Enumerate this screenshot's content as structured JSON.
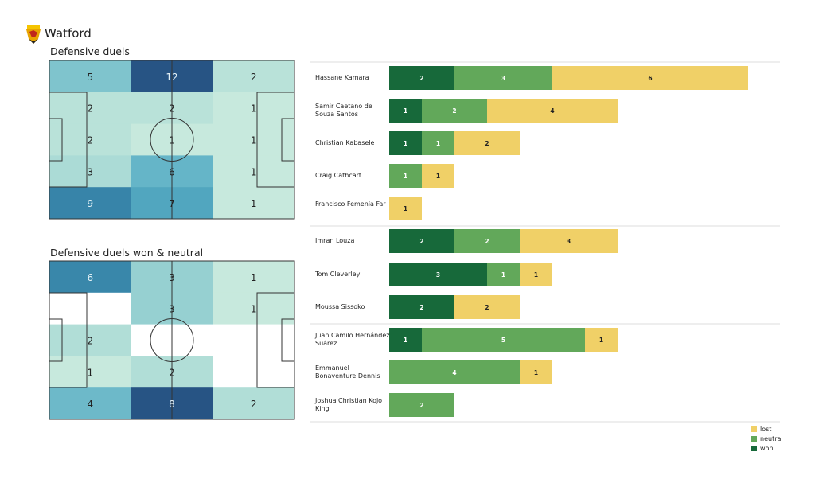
{
  "team": "Watford",
  "colors": {
    "won": "#17693a",
    "neutral": "#62a85a",
    "lost": "#f0d067"
  },
  "chart_data": [
    {
      "type": "heatmap",
      "title": "Defensive duels",
      "grid": [
        [
          5,
          12,
          2
        ],
        [
          2,
          2,
          1
        ],
        [
          2,
          1,
          1
        ],
        [
          3,
          6,
          1
        ],
        [
          9,
          7,
          1
        ]
      ]
    },
    {
      "type": "heatmap",
      "title": "Defensive duels won & neutral",
      "grid": [
        [
          6,
          3,
          1
        ],
        [
          0,
          3,
          1
        ],
        [
          2,
          0,
          0
        ],
        [
          1,
          2,
          0
        ],
        [
          4,
          8,
          2
        ]
      ]
    },
    {
      "type": "bar",
      "stacked": true,
      "orientation": "horizontal",
      "legend": [
        "lost",
        "neutral",
        "won"
      ],
      "legend_position": "bottom-right",
      "categories": [
        "Hassane Kamara",
        "Samir Caetano de Souza Santos",
        "Christian Kabasele",
        "Craig Cathcart",
        "Francisco Femenía Far",
        "Imran Louza",
        "Tom Cleverley",
        "Moussa Sissoko",
        "Juan Camilo Hernández Suárez",
        "Emmanuel Bonaventure Dennis",
        "Joshua Christian Kojo King"
      ],
      "series": [
        {
          "name": "won",
          "values": [
            2,
            1,
            1,
            0,
            0,
            2,
            3,
            2,
            1,
            0,
            0
          ]
        },
        {
          "name": "neutral",
          "values": [
            3,
            2,
            1,
            1,
            0,
            2,
            1,
            0,
            5,
            4,
            2
          ]
        },
        {
          "name": "lost",
          "values": [
            6,
            4,
            2,
            1,
            1,
            3,
            1,
            2,
            1,
            1,
            0
          ]
        }
      ]
    }
  ]
}
